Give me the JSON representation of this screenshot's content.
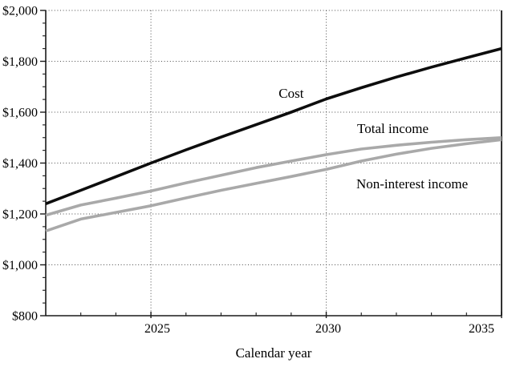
{
  "chart_data": {
    "type": "line",
    "title": "",
    "xlabel": "Calendar year",
    "ylabel": "",
    "xlim": [
      2022,
      2035
    ],
    "ylim": [
      800,
      2000
    ],
    "grid": {
      "style": "dotted",
      "horizontal_at": [
        1000,
        1200,
        1400,
        1600,
        1800,
        2000
      ],
      "vertical_at": [
        2025,
        2030
      ]
    },
    "x": [
      2022,
      2023,
      2024,
      2025,
      2026,
      2027,
      2028,
      2029,
      2030,
      2031,
      2032,
      2033,
      2034,
      2035
    ],
    "series": [
      {
        "name": "Cost",
        "color": "#0d0d0d",
        "values": [
          1240,
          1293,
          1346,
          1400,
          1452,
          1502,
          1551,
          1600,
          1652,
          1696,
          1738,
          1777,
          1814,
          1850
        ]
      },
      {
        "name": "Total income",
        "color": "#a9a9a9",
        "values": [
          1195,
          1235,
          1262,
          1290,
          1322,
          1352,
          1382,
          1408,
          1433,
          1455,
          1470,
          1482,
          1492,
          1500
        ]
      },
      {
        "name": "Non-interest income",
        "color": "#a9a9a9",
        "values": [
          1133,
          1180,
          1206,
          1232,
          1263,
          1293,
          1320,
          1347,
          1375,
          1408,
          1435,
          1458,
          1476,
          1492
        ]
      }
    ],
    "y_ticks": {
      "major_values": [
        800,
        1000,
        1200,
        1400,
        1600,
        1800,
        2000
      ],
      "major_labels": [
        "$800",
        "$1,000",
        "$1,200",
        "$1,400",
        "$1,600",
        "$1,800",
        "$2,000"
      ],
      "minor_step": 50
    },
    "x_ticks": {
      "major_values": [
        2025,
        2030,
        2035
      ],
      "major_labels": [
        "2025",
        "2030",
        "2035"
      ],
      "label_x_centers": [
        196,
        409,
        600
      ],
      "minor_step": 1
    },
    "annotations": [
      {
        "text": "Cost",
        "x": 2029.0,
        "y": 1676
      },
      {
        "text": "Total income",
        "x": 2031.9,
        "y": 1537
      },
      {
        "text": "Non-interest income",
        "x": 2032.45,
        "y": 1320
      }
    ]
  },
  "colors": {
    "background": "#ffffff",
    "axis": "#1a1a1a",
    "grid_dots": "#4d4d4d",
    "text": "#000000"
  }
}
